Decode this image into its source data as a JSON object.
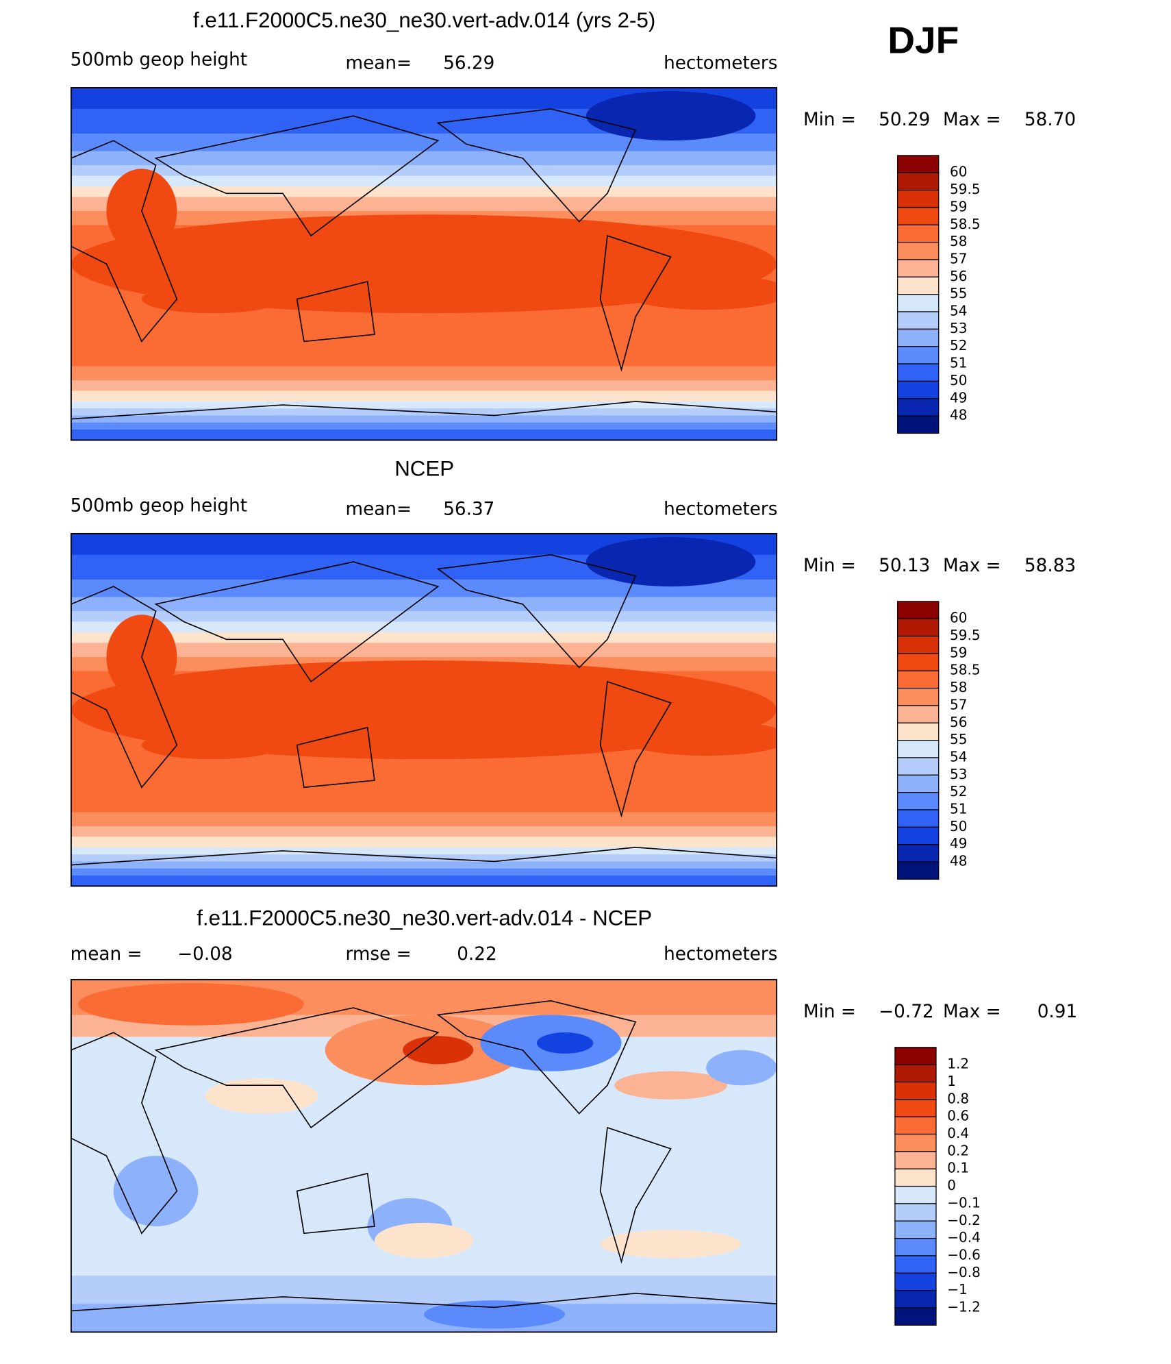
{
  "season": "DJF",
  "palette": [
    "#8b0000",
    "#b01a05",
    "#d93208",
    "#f04a12",
    "#fb6b34",
    "#fc8d5c",
    "#fcb394",
    "#fde3cc",
    "#d8e8fb",
    "#b5cdfa",
    "#8eb1fb",
    "#5a8afc",
    "#2f62f5",
    "#1442e0",
    "#0826b0",
    "#00137a"
  ],
  "panels": [
    {
      "title": "f.e11.F2000C5.ne30_ne30.vert-adv.014 (yrs 2-5)",
      "left": "500mb  geop  height",
      "stat_label": "mean=",
      "stat_value": "56.29",
      "units": "hectometers",
      "min_label": "Min =",
      "min": "50.29",
      "max_label": "Max =",
      "max": "58.70",
      "colorbar": [
        "60",
        "59.5",
        "59",
        "58.5",
        "58",
        "57",
        "56",
        "55",
        "54",
        "53",
        "52",
        "51",
        "50",
        "49",
        "48"
      ]
    },
    {
      "title": "NCEP",
      "left": "500mb  geop  height",
      "stat_label": "mean=",
      "stat_value": "56.37",
      "units": "hectometers",
      "min_label": "Min =",
      "min": "50.13",
      "max_label": "Max =",
      "max": "58.83",
      "colorbar": [
        "60",
        "59.5",
        "59",
        "58.5",
        "58",
        "57",
        "56",
        "55",
        "54",
        "53",
        "52",
        "51",
        "50",
        "49",
        "48"
      ]
    },
    {
      "title": "f.e11.F2000C5.ne30_ne30.vert-adv.014 - NCEP",
      "left": "mean =",
      "left_value": "−0.08",
      "stat_label": "rmse =",
      "stat_value": "0.22",
      "units": "hectometers",
      "min_label": "Min =",
      "min": "−0.72",
      "max_label": "Max =",
      "max": "0.91",
      "colorbar": [
        "1.2",
        "1",
        "0.8",
        "0.6",
        "0.4",
        "0.2",
        "0.1",
        "0",
        "−0.1",
        "−0.2",
        "−0.4",
        "−0.6",
        "−0.8",
        "−1",
        "−1.2"
      ]
    }
  ]
}
